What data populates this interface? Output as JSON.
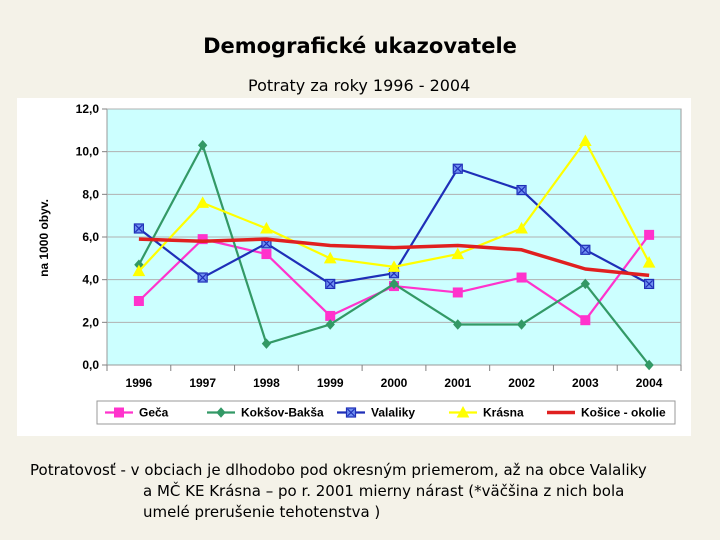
{
  "slide": {
    "title": "Demografické ukazovatele",
    "caption_line1": "Potratovosť - v obciach je dlhodobo pod okresným priemerom, až na obce Valaliky",
    "caption_line2": "a MČ KE Krásna – po r. 2001 mierny nárast  (*väčšina z nich bola",
    "caption_line3": "umelé prerušenie tehotenstva )"
  },
  "chart_data": {
    "type": "line",
    "title": "Potraty za roky 1996 - 2004",
    "xlabel": "",
    "ylabel": "na 1000 obyv.",
    "categories": [
      "1996",
      "1997",
      "1998",
      "1999",
      "2000",
      "2001",
      "2002",
      "2003",
      "2004"
    ],
    "ylim": [
      0,
      12
    ],
    "yticks": [
      "0,0",
      "2,0",
      "4,0",
      "6,0",
      "8,0",
      "10,0",
      "12,0"
    ],
    "grid": true,
    "legend_position": "bottom",
    "plot_background": "#ccffff",
    "series": [
      {
        "name": "Geča",
        "color": "#ff33cc",
        "marker": "square",
        "values": [
          3.0,
          5.9,
          5.2,
          2.3,
          3.7,
          3.4,
          4.1,
          2.1,
          6.1
        ]
      },
      {
        "name": "Kokšov-Bakša",
        "color": "#339966",
        "marker": "diamond",
        "values": [
          4.7,
          10.3,
          1.0,
          1.9,
          3.8,
          1.9,
          1.9,
          3.8,
          0.0
        ]
      },
      {
        "name": "Valaliky",
        "color": "#1f2fb8",
        "marker": "x-square",
        "values": [
          6.4,
          4.1,
          5.7,
          3.8,
          4.3,
          9.2,
          8.2,
          5.4,
          3.8
        ]
      },
      {
        "name": "Krásna",
        "color": "#ffff00",
        "marker": "triangle",
        "values": [
          4.4,
          7.6,
          6.4,
          5.0,
          4.6,
          5.2,
          6.4,
          10.5,
          4.8
        ]
      },
      {
        "name": "Košice - okolie",
        "color": "#e02020",
        "marker": "none",
        "values": [
          5.9,
          5.8,
          5.9,
          5.6,
          5.5,
          5.6,
          5.4,
          4.5,
          4.2
        ]
      }
    ]
  }
}
